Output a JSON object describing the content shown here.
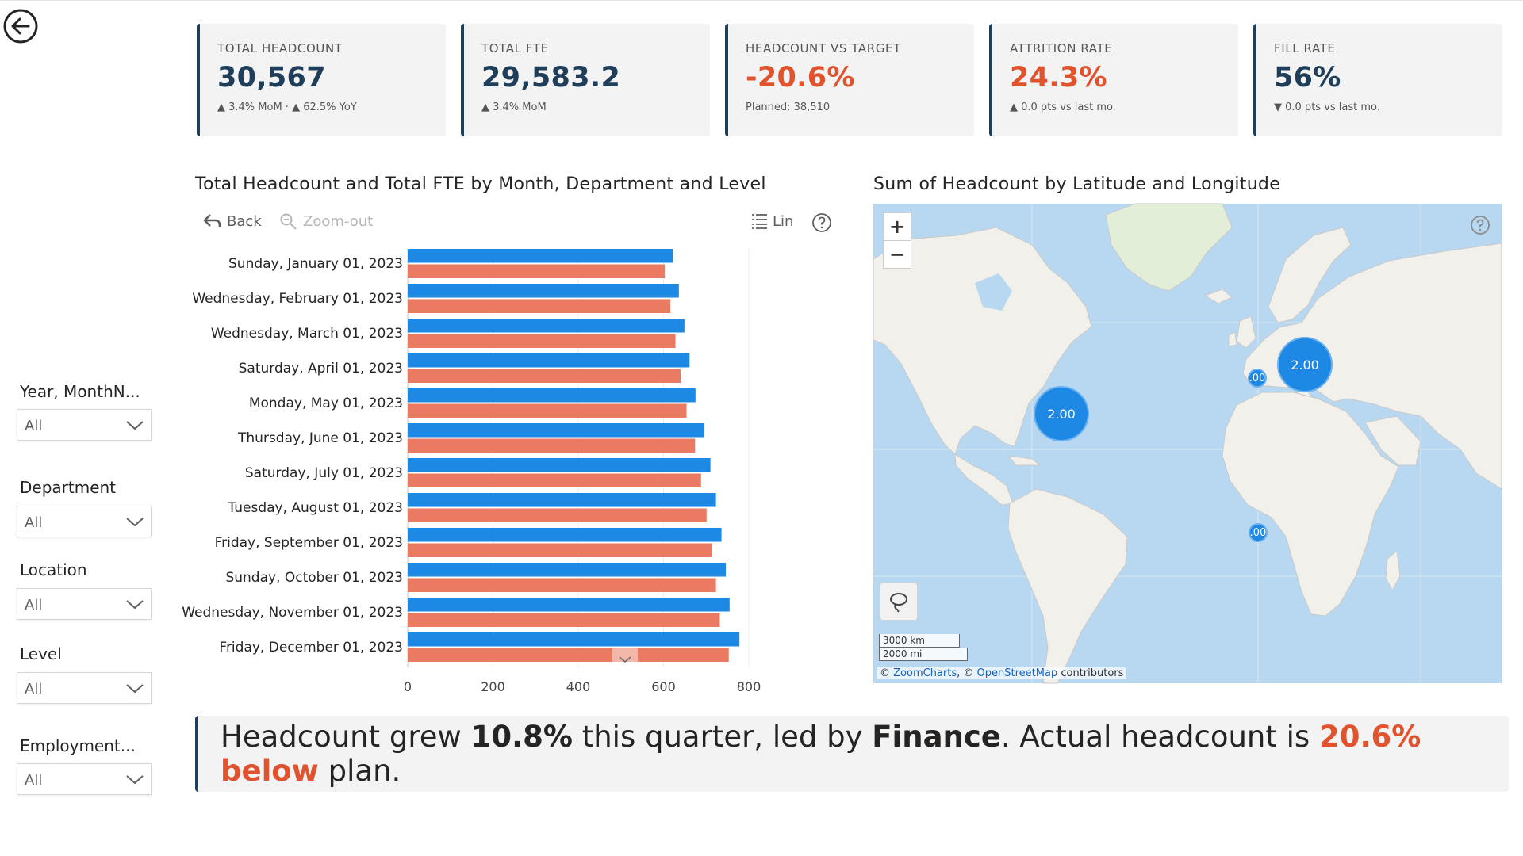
{
  "kpis": [
    {
      "title": "TOTAL HEADCOUNT",
      "value": "30,567",
      "sub": "▲ 3.4% MoM  ·  ▲ 62.5% YoY",
      "negative": false
    },
    {
      "title": "TOTAL FTE",
      "value": "29,583.2",
      "sub": "▲ 3.4% MoM",
      "negative": false
    },
    {
      "title": "HEADCOUNT VS TARGET",
      "value": "-20.6%",
      "sub": "Planned: 38,510",
      "negative": true
    },
    {
      "title": "ATTRITION RATE",
      "value": "24.3%",
      "sub": "▲ 0.0 pts vs last mo.",
      "negative": true
    },
    {
      "title": "FILL RATE",
      "value": "56%",
      "sub": "▼ 0.0 pts vs last mo.",
      "negative": false
    }
  ],
  "chart_title": "Total Headcount and Total FTE by Month, Department and Level",
  "toolbar": {
    "back": "Back",
    "zoom_out": "Zoom-out",
    "lin": "Lin"
  },
  "colors": {
    "headcount": "#1e88e5",
    "fte": "#ea7a61",
    "accent": "#e1522e",
    "navy": "#1f3e5a"
  },
  "chart_data": {
    "type": "bar",
    "orientation": "horizontal",
    "categories": [
      "Sunday, January 01, 2023",
      "Wednesday, February 01, 2023",
      "Wednesday, March 01, 2023",
      "Saturday, April 01, 2023",
      "Monday, May 01, 2023",
      "Thursday, June 01, 2023",
      "Saturday, July 01, 2023",
      "Tuesday, August 01, 2023",
      "Friday, September 01, 2023",
      "Sunday, October 01, 2023",
      "Wednesday, November 01, 2023",
      "Friday, December 01, 2023"
    ],
    "series": [
      {
        "name": "Total Headcount",
        "values": [
          622,
          636,
          649,
          661,
          675,
          696,
          710,
          723,
          736,
          746,
          755,
          778
        ]
      },
      {
        "name": "Total FTE",
        "values": [
          603,
          616,
          628,
          640,
          654,
          674,
          688,
          701,
          714,
          723,
          732,
          753
        ]
      }
    ],
    "xlim": [
      0,
      800
    ],
    "xticks": [
      0,
      200,
      400,
      600,
      800
    ],
    "grid": true
  },
  "map": {
    "title": "Sum of Headcount by Latitude and Longitude",
    "zoom_in": "+",
    "zoom_out": "−",
    "bubbles": [
      {
        "label": "2.00",
        "place": "north-america"
      },
      {
        "label": "2.00",
        "place": "europe"
      },
      {
        "label": ".00",
        "place": "uk"
      },
      {
        "label": ".00",
        "place": "west-africa"
      }
    ],
    "scale_km": "3000 km",
    "scale_mi": "2000 mi",
    "attribution_prefix": "©",
    "attribution_zoomcharts": "ZoomCharts",
    "attribution_mid": ", ©",
    "attribution_osm": "OpenStreetMap",
    "attribution_suffix": "contributors"
  },
  "slicers": [
    {
      "label": "Year, MonthN...",
      "value": "All"
    },
    {
      "label": "Department",
      "value": "All"
    },
    {
      "label": "Location",
      "value": "All"
    },
    {
      "label": "Level",
      "value": "All"
    },
    {
      "label": "Employment...",
      "value": "All"
    }
  ],
  "narrative": {
    "p1": "Headcount grew ",
    "growth": "10.8%",
    "p2": " this quarter, led by ",
    "dept": "Finance",
    "p3": ". Actual headcount is ",
    "gap": "20.6% below",
    "p4": " plan."
  }
}
